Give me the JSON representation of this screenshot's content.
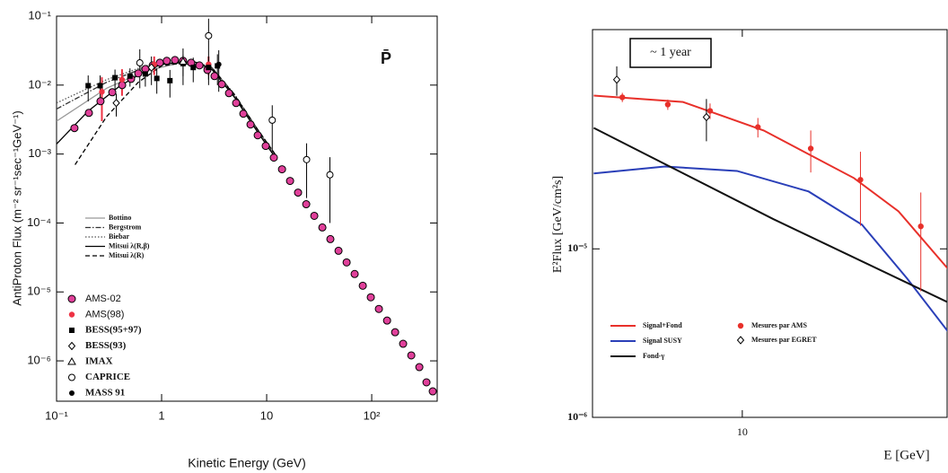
{
  "chart_data": [
    {
      "type": "scatter",
      "x_label": "Kinetic Energy (GeV)",
      "y_label": "AntiProton Flux (m⁻² sr⁻¹sec⁻¹GeV⁻¹)",
      "annotation": "P̄",
      "xlog": true,
      "ylog": true,
      "xlim": [
        0.1,
        420
      ],
      "ylim": [
        2.6e-07,
        0.1
      ],
      "xticks": [
        {
          "value": 0.1,
          "label": "10⁻¹"
        },
        1,
        10,
        {
          "value": 100,
          "label": "10²"
        }
      ],
      "yticks": [
        {
          "value": 1e-06,
          "label": "10⁻⁶"
        },
        {
          "value": 1e-05,
          "label": "10⁻⁵"
        },
        {
          "value": 0.0001,
          "label": "10⁻⁴"
        },
        {
          "value": 0.001,
          "label": "10⁻³"
        },
        {
          "value": 0.01,
          "label": "10⁻²"
        },
        {
          "value": 0.1,
          "label": "10⁻¹"
        }
      ],
      "series": [
        {
          "name": "Bottino",
          "color": "#999999",
          "dash": "solid",
          "x": [
            0.1,
            0.3,
            0.7,
            1.5,
            3,
            5,
            8,
            12
          ],
          "values": [
            0.003,
            0.009,
            0.016,
            0.021,
            0.017,
            0.0068,
            0.0023,
            0.00095
          ]
        },
        {
          "name": "Bergstrom",
          "color": "#333333",
          "dash": "dashdot",
          "x": [
            0.1,
            0.3,
            0.7,
            1.5,
            3,
            5,
            8,
            12
          ],
          "values": [
            0.0045,
            0.011,
            0.018,
            0.022,
            0.018,
            0.0072,
            0.0024,
            0.001
          ]
        },
        {
          "name": "Biebar",
          "color": "#555555",
          "dash": "dotted",
          "x": [
            0.1,
            0.3,
            0.7,
            1.5,
            3,
            5,
            8,
            12
          ],
          "values": [
            0.0055,
            0.012,
            0.019,
            0.022,
            0.018,
            0.007,
            0.0023,
            0.00095
          ]
        },
        {
          "name": "Mitsui λ(R,β)",
          "color": "#000000",
          "dash": "solid",
          "x": [
            0.1,
            0.2,
            0.4,
            0.7,
            1,
            2,
            3,
            5,
            8,
            12
          ],
          "values": [
            0.0014,
            0.0042,
            0.0097,
            0.016,
            0.02,
            0.022,
            0.017,
            0.0065,
            0.0022,
            0.0009
          ]
        },
        {
          "name": "Mitsui λ(R)",
          "color": "#000000",
          "dash": "dashed",
          "x": [
            0.15,
            0.3,
            0.6,
            1,
            2,
            3,
            5,
            8,
            12
          ],
          "values": [
            0.0007,
            0.0035,
            0.011,
            0.019,
            0.022,
            0.018,
            0.007,
            0.0024,
            0.001
          ]
        },
        {
          "name": "AMS-02",
          "color": "#e0409a",
          "marker": "circle",
          "x": [
            0.148,
            0.203,
            0.262,
            0.339,
            0.421,
            0.512,
            0.6,
            0.701,
            0.822,
            0.962,
            1.12,
            1.34,
            1.6,
            1.91,
            2.29,
            2.73,
            3.19,
            3.74,
            4.38,
            5.12,
            6.0,
            7.02,
            8.22,
            9.8,
            11.7,
            14.0,
            16.7,
            19.9,
            23.8,
            28.4,
            33.9,
            40.4,
            48.3,
            57.7,
            68.8,
            82.2,
            98.0,
            117,
            140,
            167,
            199,
            238,
            284,
            332,
            381
          ],
          "values": [
            0.00238,
            0.00395,
            0.00583,
            0.00787,
            0.01,
            0.0123,
            0.0148,
            0.0171,
            0.0193,
            0.0211,
            0.0225,
            0.0231,
            0.0225,
            0.0211,
            0.0193,
            0.0166,
            0.0135,
            0.0103,
            0.00764,
            0.0055,
            0.00384,
            0.00268,
            0.00187,
            0.00131,
            0.000887,
            0.000601,
            0.000407,
            0.000276,
            0.000187,
            0.000127,
            8.61e-05,
            5.83e-05,
            3.95e-05,
            2.68e-05,
            1.82e-05,
            1.23e-05,
            8.36e-06,
            5.66e-06,
            3.84e-06,
            2.6e-06,
            1.77e-06,
            1.2e-06,
            8.11e-07,
            4.88e-07,
            3.61e-07
          ]
        },
        {
          "name": "AMS(98)",
          "color": "#ee3344",
          "marker": "dot",
          "x": [
            0.27,
            0.42,
            0.85,
            2.8
          ],
          "values": [
            0.008,
            0.012,
            0.02,
            0.02
          ],
          "errors": [
            0.005,
            0.005,
            0.006,
            0.006
          ]
        },
        {
          "name": "BESS(95+97)",
          "color": "#000000",
          "marker": "square",
          "x": [
            0.2,
            0.26,
            0.36,
            0.5,
            0.7,
            0.9,
            1.2,
            1.6,
            2.0,
            2.8,
            3.4
          ],
          "values": [
            0.0098,
            0.0098,
            0.0128,
            0.0135,
            0.0145,
            0.0125,
            0.0116,
            0.0205,
            0.018,
            0.018,
            0.019
          ],
          "errors": [
            0.004,
            0.004,
            0.004,
            0.004,
            0.005,
            0.005,
            0.005,
            0.007,
            0.007,
            0.008,
            0.009
          ]
        },
        {
          "name": "BESS(93)",
          "color": "#000000",
          "marker": "diamond",
          "x": [
            0.37,
            0.8
          ],
          "values": [
            0.0055,
            0.018
          ],
          "errors": [
            0.002,
            0.008
          ]
        },
        {
          "name": "IMAX",
          "color": "#000000",
          "marker": "triangle",
          "x": [
            1.6
          ],
          "values": [
            0.022
          ],
          "errors": [
            0.012
          ]
        },
        {
          "name": "CAPRICE",
          "color": "#000000",
          "marker": "open-circle",
          "x": [
            0.62,
            2.8,
            11.3,
            24,
            40
          ],
          "values": [
            0.021,
            0.052,
            0.0031,
            0.00083,
            0.0005
          ],
          "errors": [
            0.012,
            0.04,
            0.002,
            0.0006,
            0.0004
          ]
        },
        {
          "name": "MASS 91",
          "color": "#000000",
          "marker": "filled-circle",
          "x": [
            3.5
          ],
          "values": [
            0.02
          ],
          "errors": [
            0.012
          ]
        }
      ]
    },
    {
      "type": "scatter",
      "x_label": "E [GeV]",
      "y_label": "E²Flux [GeV/cm²s]",
      "annotation": "~ 1 year",
      "xlog": true,
      "ylog": true,
      "xlim": [
        4,
        35
      ],
      "ylim": [
        1e-06,
        0.0002
      ],
      "xticks": [
        10
      ],
      "yticks": [
        {
          "value": 1e-06,
          "label": "10⁻⁶"
        },
        {
          "value": 1e-05,
          "label": "10⁻⁵"
        }
      ],
      "series": [
        {
          "name": "Signal+Fond",
          "color": "#e8302a",
          "dash": "solid",
          "x": [
            4.03,
            6.96,
            11.4,
            19.8,
            26.0,
            35.3
          ],
          "values": [
            8.12e-05,
            7.44e-05,
            5.04e-05,
            2.63e-05,
            1.67e-05,
            7.55e-06
          ]
        },
        {
          "name": "Signal SUSY",
          "color": "#2a3fb8",
          "dash": "solid",
          "x": [
            4.03,
            6.23,
            9.68,
            15.0,
            20.8,
            27.4,
            35.3
          ],
          "values": [
            2.8e-05,
            3.08e-05,
            2.9e-05,
            2.19e-05,
            1.39e-05,
            6.67e-06,
            3.2e-06
          ]
        },
        {
          "name": "Fond-γ",
          "color": "#111111",
          "dash": "solid",
          "x": [
            4.03,
            12.1,
            35.3
          ],
          "values": [
            5.22e-05,
            1.5e-05,
            4.8e-06
          ]
        },
        {
          "name": "Mesures par AMS",
          "color": "#e8302a",
          "marker": "dot",
          "x": [
            4.8,
            6.34,
            8.21,
            11.0,
            15.2,
            20.6,
            29.8
          ],
          "values": [
            7.93e-05,
            7.18e-05,
            6.59e-05,
            5.28e-05,
            3.94e-05,
            2.57e-05,
            1.36e-05
          ],
          "errors": [
            5e-06,
            5e-06,
            7e-06,
            7e-06,
            1.1e-05,
            1.2e-05,
            8e-06
          ]
        },
        {
          "name": "Mesures par EGRET",
          "color": "#000000",
          "marker": "diamond",
          "x": [
            4.64,
            8.03
          ],
          "values": [
            0.000101,
            6.05e-05
          ],
          "errors": [
            2e-05,
            1.7e-05
          ]
        }
      ]
    }
  ]
}
